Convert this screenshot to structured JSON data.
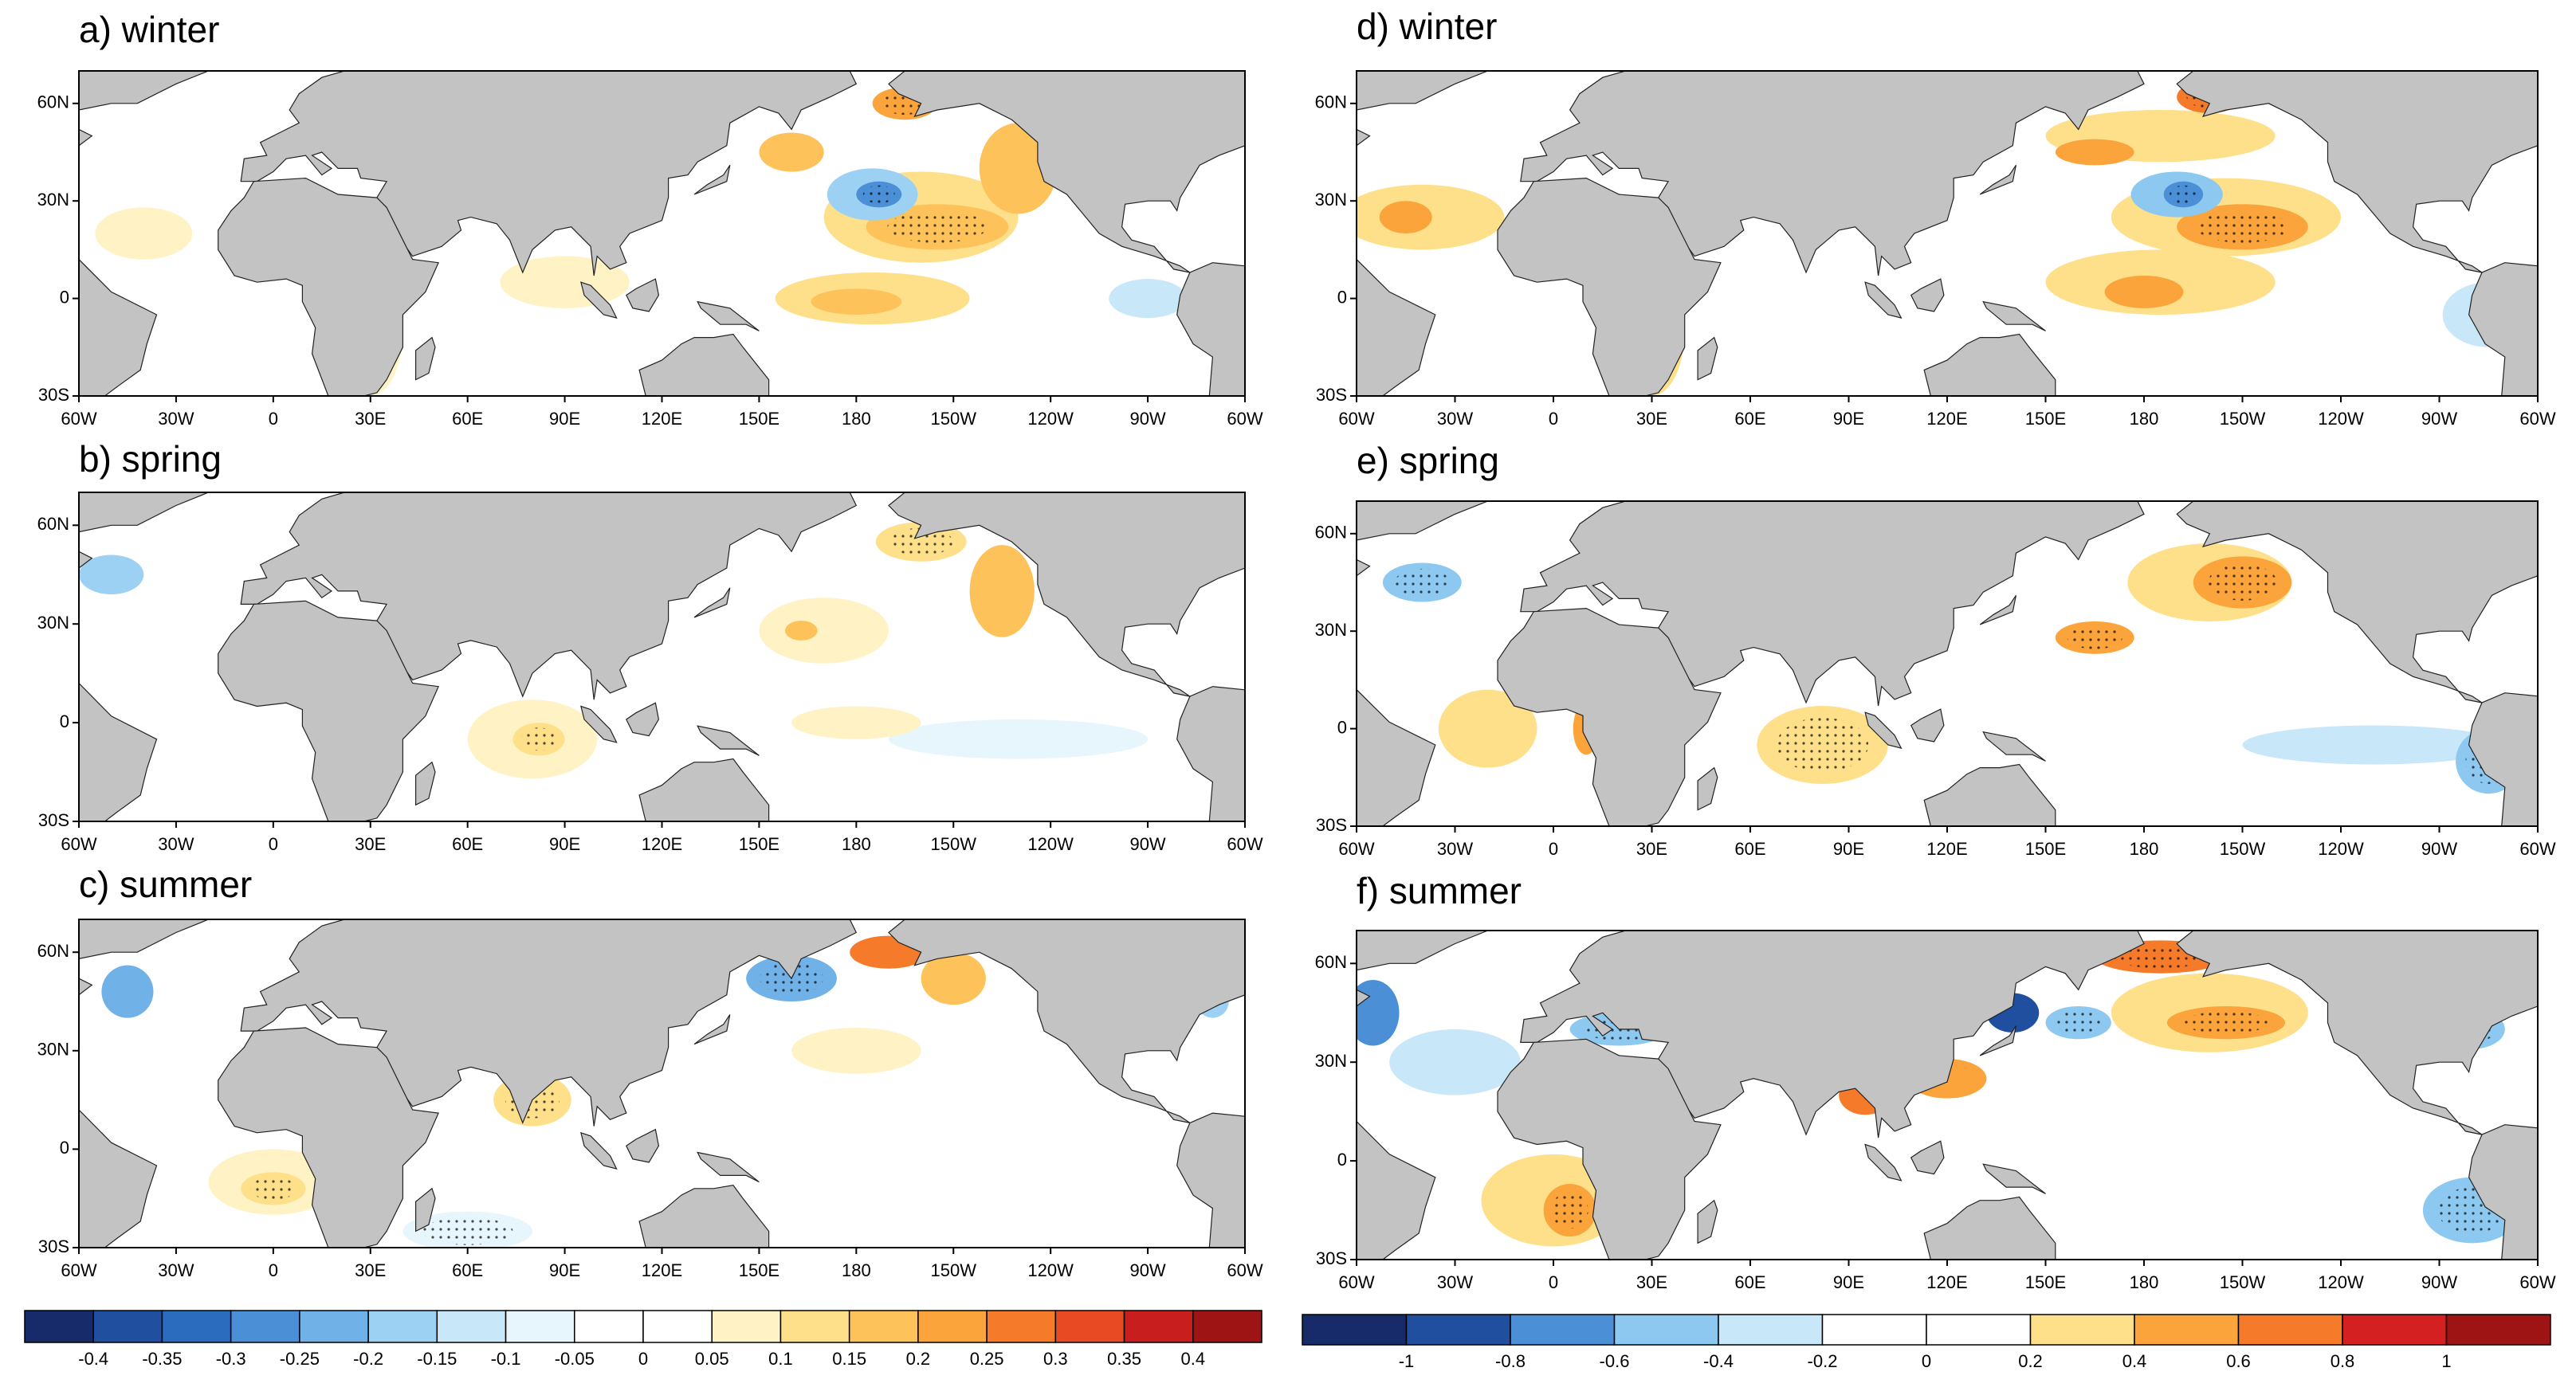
{
  "panels": [
    {
      "title": "a) winter"
    },
    {
      "title": "b) spring"
    },
    {
      "title": "c) summer"
    },
    {
      "title": "d) winter"
    },
    {
      "title": "e) spring"
    },
    {
      "title": "f) summer"
    }
  ],
  "lon_labels": [
    "60W",
    "30W",
    "0",
    "30E",
    "60E",
    "90E",
    "120E",
    "150E",
    "180",
    "150W",
    "120W",
    "90W",
    "60W"
  ],
  "lat_labels": [
    "60N",
    "30N",
    "0",
    "30S"
  ],
  "colorbars": [
    {
      "ticks": [
        -0.4,
        -0.35,
        -0.3,
        -0.25,
        -0.2,
        -0.15,
        -0.1,
        -0.05,
        0,
        0.05,
        0.1,
        0.15,
        0.2,
        0.25,
        0.3,
        0.35,
        0.4
      ],
      "colors": [
        "#172a6a",
        "#1f4f9e",
        "#2b6cbf",
        "#4b8fd6",
        "#70b1e7",
        "#9dd1f3",
        "#c8e7f9",
        "#e7f5fd",
        "#ffffff",
        "#ffffff",
        "#fff3c5",
        "#fee08b",
        "#fdc25a",
        "#fca43c",
        "#f57a2a",
        "#e84a24",
        "#c81e1e",
        "#9e1414"
      ]
    },
    {
      "ticks": [
        -1,
        -0.8,
        -0.6,
        -0.4,
        -0.2,
        0,
        0.2,
        0.4,
        0.6,
        0.8,
        1
      ],
      "colors": [
        "#172a6a",
        "#1f4f9e",
        "#4b8fd6",
        "#8cc8ef",
        "#c8e7f9",
        "#ffffff",
        "#ffffff",
        "#fee08b",
        "#fca43c",
        "#f57a2a",
        "#d42020",
        "#9e1414"
      ]
    }
  ]
}
